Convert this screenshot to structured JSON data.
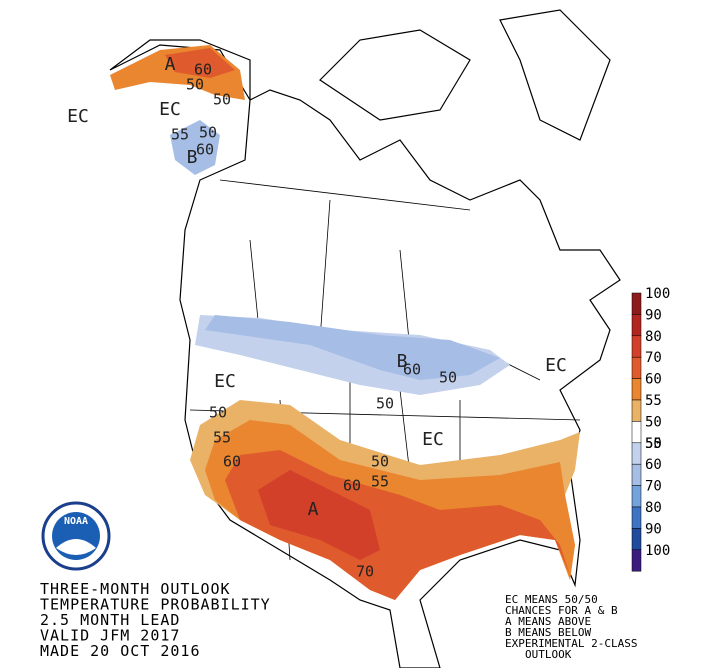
{
  "map": {
    "labels": [
      "A",
      "60",
      "50",
      "50",
      "EC",
      "EC",
      "55",
      "50",
      "B",
      "60",
      "EC",
      "B",
      "60",
      "50",
      "EC",
      "50",
      "50",
      "55",
      "60",
      "EC",
      "50",
      "60",
      "55",
      "A",
      "70"
    ]
  },
  "legend": {
    "ticks": [
      "100",
      "90",
      "80",
      "70",
      "60",
      "55",
      "50",
      "50",
      "55",
      "60",
      "70",
      "80",
      "90",
      "100"
    ],
    "colors": [
      "#8e1b1b",
      "#b3251f",
      "#d2402a",
      "#df5a2c",
      "#e9862f",
      "#eab266",
      "#ffffff",
      "#c3d1ec",
      "#a6bde6",
      "#73a2dc",
      "#3f73c4",
      "#1f4a9e",
      "#3b1c7e"
    ]
  },
  "logo": "NOAA",
  "caption": {
    "lines": [
      "THREE-MONTH OUTLOOK",
      "TEMPERATURE PROBABILITY",
      "2.5 MONTH LEAD",
      "VALID JFM 2017",
      "MADE 20 OCT 2016"
    ]
  },
  "notes": {
    "lines": [
      "EC MEANS 50/50",
      "CHANCES FOR A & B",
      "A MEANS ABOVE",
      "B MEANS BELOW",
      "EXPERIMENTAL 2-CLASS",
      "OUTLOOK"
    ]
  }
}
